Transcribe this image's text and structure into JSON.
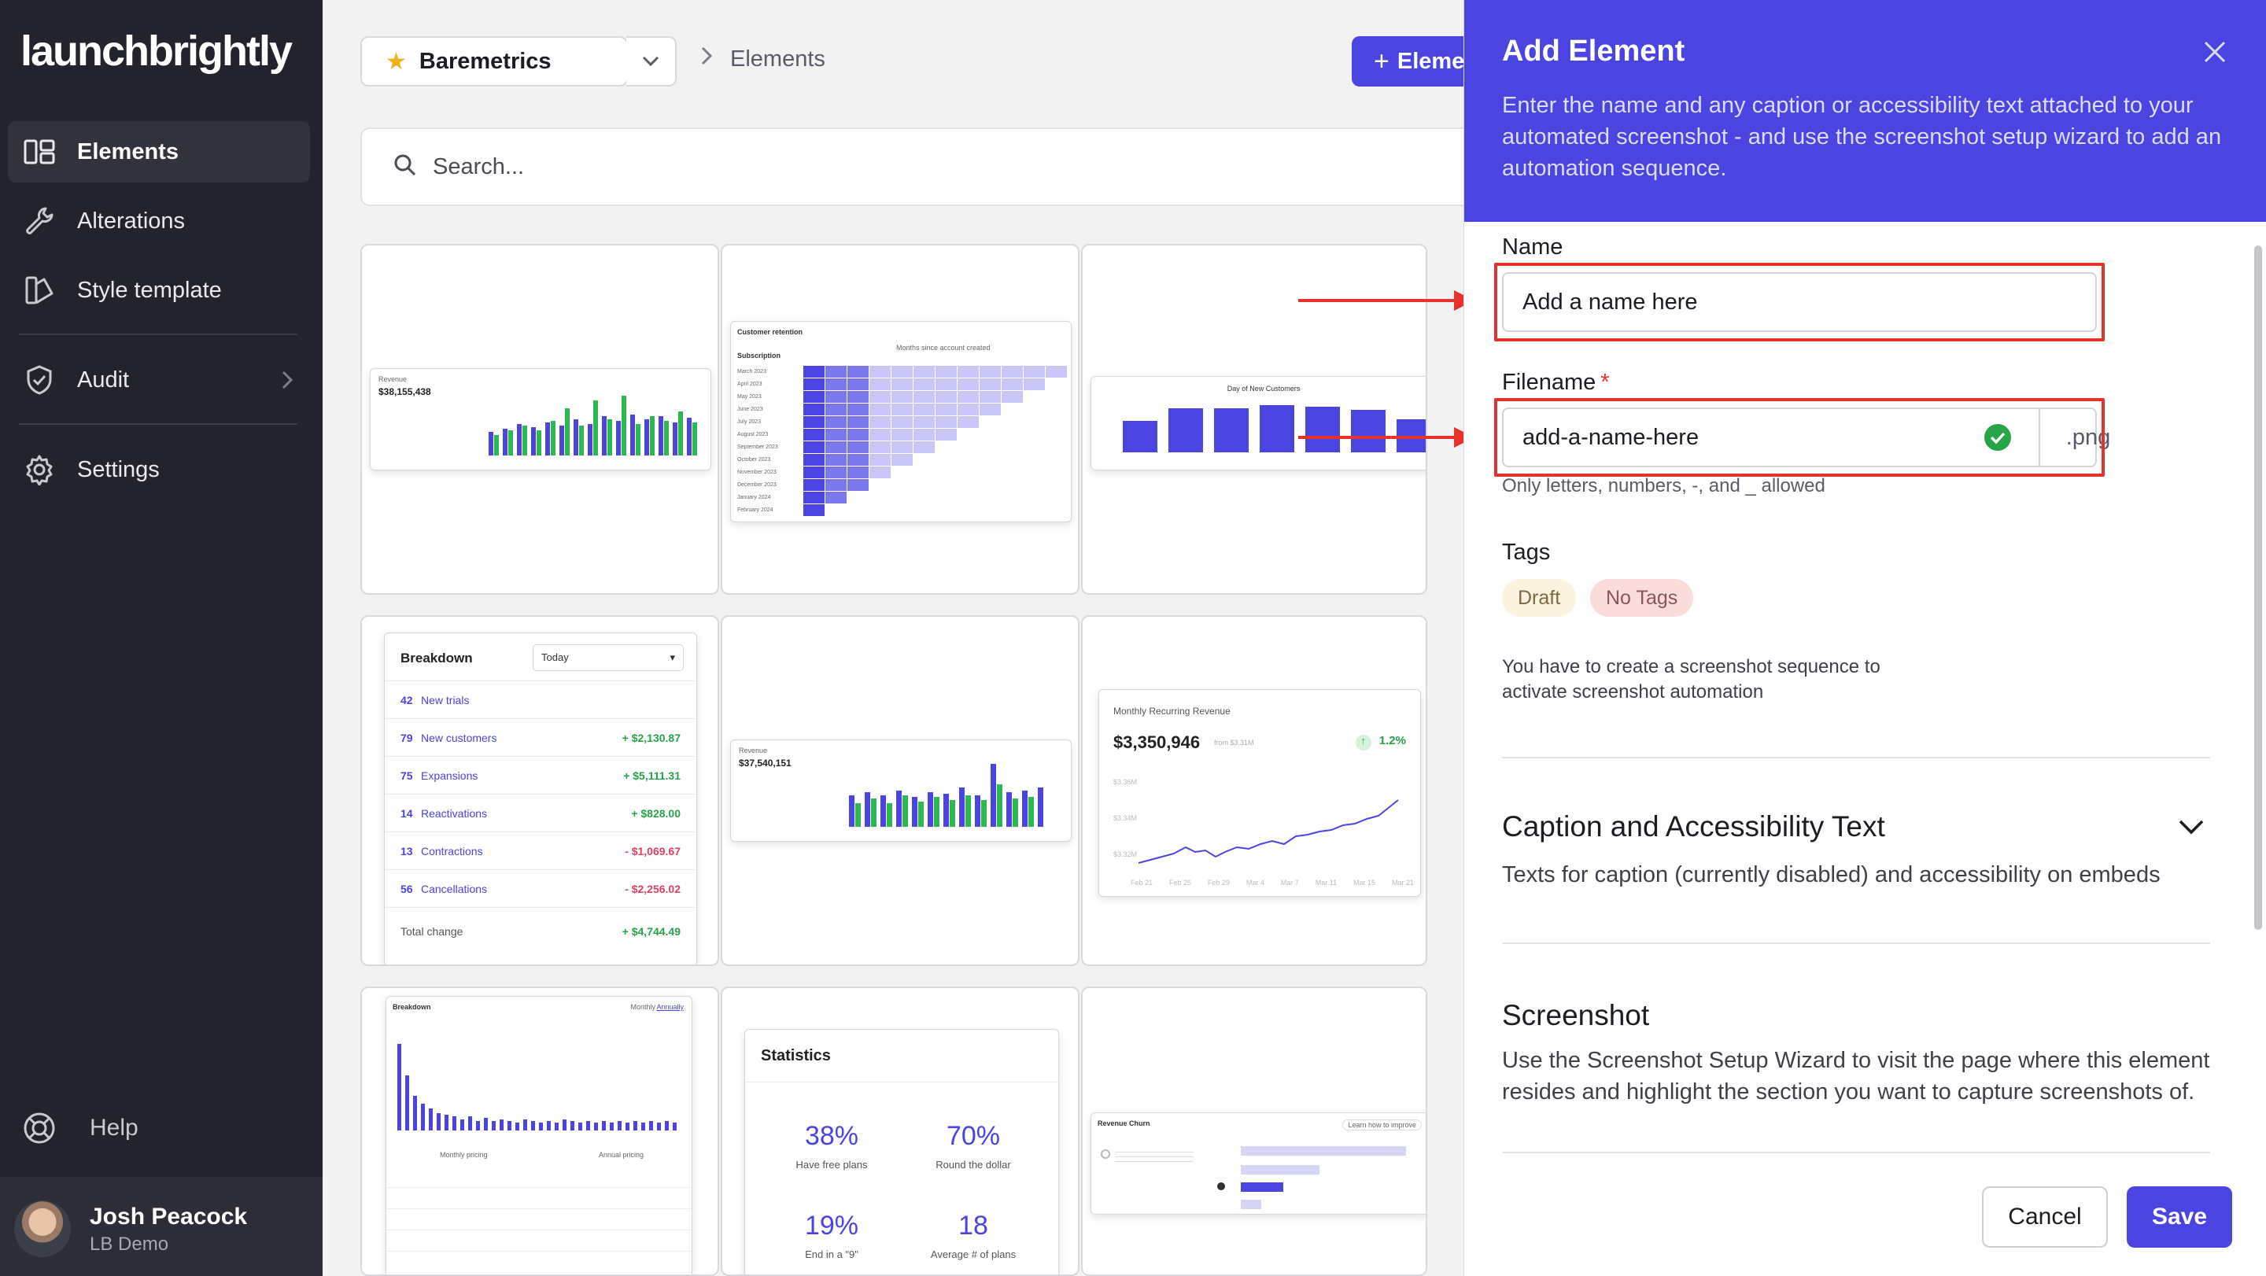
{
  "app": {
    "logo_text": "launchbrightly",
    "nav": [
      {
        "label": "Elements",
        "icon": "layout-icon",
        "active": true
      },
      {
        "label": "Alterations",
        "icon": "wrench-icon"
      },
      {
        "label": "Style template",
        "icon": "palette-icon"
      },
      {
        "label": "Audit",
        "icon": "shield-icon"
      },
      {
        "label": "Settings",
        "icon": "gear-icon"
      }
    ],
    "help_label": "Help",
    "user": {
      "name": "Josh Peacock",
      "org": "LB Demo"
    }
  },
  "header": {
    "project": "Baremetrics",
    "breadcrumb": "Elements",
    "add_button": "Eleme"
  },
  "search": {
    "placeholder": "Search..."
  },
  "cards": {
    "revenue1": {
      "value": "$38,155,438"
    },
    "retention": {
      "title": "Customer retention",
      "subtitle": "Months since account created",
      "col": "Subscription",
      "rows": [
        "March 2023",
        "April 2023",
        "May 2023",
        "June 2023",
        "July 2023",
        "August 2023",
        "September 2023",
        "October 2023",
        "November 2023",
        "December 2023",
        "January 2024",
        "February 2024"
      ]
    },
    "day_customers": {
      "title": "Day of New Customers"
    },
    "breakdown": {
      "title": "Breakdown",
      "select": "Today",
      "rows": [
        {
          "num": "42",
          "label": "New trials",
          "value": ""
        },
        {
          "num": "79",
          "label": "New customers",
          "value": "+ $2,130.87"
        },
        {
          "num": "75",
          "label": "Expansions",
          "value": "+ $5,111.31"
        },
        {
          "num": "14",
          "label": "Reactivations",
          "value": "+ $828.00"
        },
        {
          "num": "13",
          "label": "Contractions",
          "value": "- $1,069.67"
        },
        {
          "num": "56",
          "label": "Cancellations",
          "value": "- $2,256.02"
        }
      ],
      "total_label": "Total change",
      "total_value": "+ $4,744.49"
    },
    "revenue2": {
      "value": "$37,540,151"
    },
    "mrr": {
      "title": "Monthly Recurring Revenue",
      "value": "$3,350,946",
      "from": "from $3.31M",
      "change": "1.2%",
      "yticks": [
        "$3.36M",
        "$3.34M",
        "$3.32M"
      ],
      "xticks": [
        "Feb 21",
        "Feb 25",
        "Feb 29",
        "Mar 4",
        "Mar 7",
        "Mar 11",
        "Mar 15",
        "Mar 21"
      ]
    },
    "breakdown2": {
      "title": "Breakdown",
      "tab1": "Monthly",
      "tab2": "Annually",
      "col1": "Monthly pricing",
      "col2": "Annual pricing"
    },
    "stats": {
      "title": "Statistics",
      "items": [
        {
          "value": "38%",
          "label": "Have free plans"
        },
        {
          "value": "70%",
          "label": "Round the dollar"
        },
        {
          "value": "19%",
          "label": "End in a \"9\""
        },
        {
          "value": "18",
          "label": "Average # of plans"
        }
      ]
    },
    "churn": {
      "title": "Revenue Churn",
      "link": "Learn how to improve"
    }
  },
  "panel": {
    "title": "Add Element",
    "description": "Enter the name and any caption or accessibility text attached to your automated screenshot - and use the screenshot setup wizard to add an automation sequence.",
    "name_label": "Name",
    "name_placeholder": "Add a name here",
    "filename_label": "Filename",
    "filename_required": "*",
    "filename_value": "add-a-name-here",
    "filename_ext": ".png",
    "filename_hint": "Only letters, numbers, -, and _ allowed",
    "tags_label": "Tags",
    "tags": [
      "Draft",
      "No Tags"
    ],
    "sequence_note": "You have to create a screenshot sequence to activate screenshot automation",
    "caption_title": "Caption and Accessibility Text",
    "caption_desc": "Texts for caption (currently disabled) and accessibility on embeds",
    "screenshot_title": "Screenshot",
    "screenshot_desc": "Use the Screenshot Setup Wizard to visit the page where this element resides and highlight the section you want to capture screenshots of.",
    "cancel": "Cancel",
    "save": "Save"
  },
  "colors": {
    "accent": "#4b44e0",
    "sidebar": "#22232c",
    "highlight": "#e5322d",
    "success": "#27a348"
  }
}
